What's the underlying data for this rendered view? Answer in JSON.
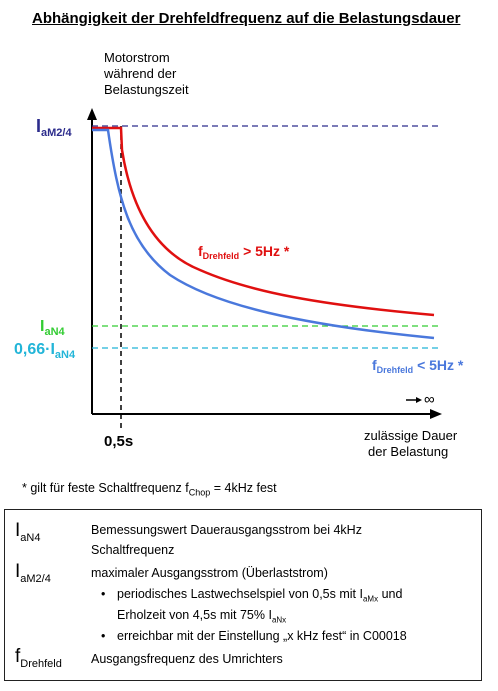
{
  "title": "Abhängigkeit der Drehfeldfrequenz auf die Belastungsdauer",
  "diagram": {
    "y_axis_label": [
      "Motorstrom",
      "während der",
      "Belastungszeit"
    ],
    "x_axis_label": [
      "zulässige Dauer",
      "der Belastung"
    ],
    "x_tick": "0,5s",
    "infinity_label": "∞",
    "levels": {
      "iam": {
        "main": "I",
        "sub": "aM2/4",
        "color": "#2c2c8c"
      },
      "ian": {
        "main": "I",
        "sub": "aN4",
        "color": "#33cc33"
      },
      "ian066": {
        "main": "0,66·I",
        "sub": "aN4",
        "color": "#22b5d8"
      }
    },
    "curves": {
      "red": {
        "label_main": "f",
        "label_sub": "Drehfeld",
        "label_rest": " > 5Hz *",
        "color": "#e01010"
      },
      "blue": {
        "label_main": "f",
        "label_sub": "Drehfeld",
        "label_rest": " < 5Hz *",
        "color": "#4a78dc"
      }
    }
  },
  "footnote": {
    "prefix": "* gilt für feste Schaltfrequenz f",
    "sub": "Chop",
    "suffix": " = 4kHz fest"
  },
  "legend": {
    "ian": {
      "sym_main": "I",
      "sym_sub": "aN4",
      "desc1": "Bemessungswert Dauerausgangsstrom bei 4kHz",
      "desc2": "Schaltfrequenz"
    },
    "iam": {
      "sym_main": "I",
      "sym_sub": "aM2/4",
      "desc": "maximaler Ausgangsstrom (Überlaststrom)"
    },
    "bullets": {
      "b1_line1_a": "periodisches Lastwechselspiel von 0,5s mit I",
      "b1_line1_sub": "aMx",
      "b1_line1_b": " und",
      "b1_line2_a": "Erholzeit von 4,5s mit 75% I",
      "b1_line2_sub": "aNx",
      "b2": "erreichbar mit der Einstellung „x kHz fest“ in C00018"
    },
    "fd": {
      "sym_main": "f",
      "sym_sub": "Drehfeld",
      "desc": "Ausgangsfrequenz des Umrichters"
    }
  }
}
